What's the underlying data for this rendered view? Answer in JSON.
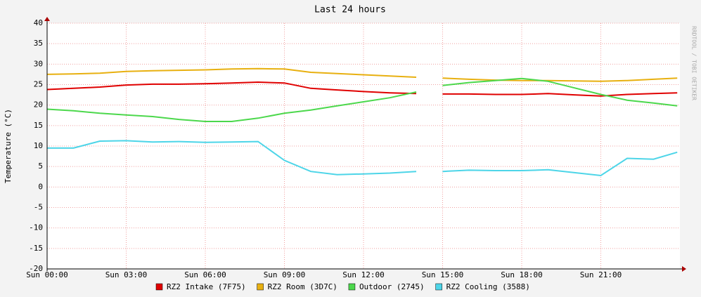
{
  "chart_data": {
    "type": "line",
    "title": "Last 24 hours",
    "y_label": "Temperature (°C)",
    "watermark": "RRDTOOL / TOBI OETIKER",
    "x": [
      0,
      1,
      2,
      3,
      4,
      5,
      6,
      7,
      8,
      9,
      10,
      11,
      12,
      13,
      14,
      14.5,
      15,
      16,
      17,
      18,
      19,
      20,
      21,
      22,
      23,
      23.9
    ],
    "series": [
      {
        "name": "RZ2 Intake (7F75)",
        "color": "#e00000",
        "values": [
          23.8,
          24.1,
          24.4,
          24.9,
          25.1,
          25.1,
          25.2,
          25.4,
          25.6,
          25.4,
          24.1,
          23.7,
          23.3,
          23.0,
          22.8,
          null,
          22.7,
          22.7,
          22.6,
          22.6,
          22.8,
          22.5,
          22.2,
          22.6,
          22.8,
          23.0
        ]
      },
      {
        "name": "RZ2 Room (3D7C)",
        "color": "#e8b010",
        "values": [
          27.5,
          27.6,
          27.8,
          28.2,
          28.4,
          28.5,
          28.6,
          28.8,
          28.9,
          28.8,
          28.0,
          27.7,
          27.4,
          27.1,
          26.8,
          null,
          26.6,
          26.3,
          26.1,
          26.0,
          26.0,
          25.9,
          25.8,
          26.0,
          26.3,
          26.6
        ]
      },
      {
        "name": "Outdoor (2745)",
        "color": "#4cd84c",
        "values": [
          19.0,
          18.6,
          18.0,
          17.6,
          17.2,
          16.5,
          16.0,
          16.0,
          16.8,
          18.0,
          18.8,
          19.8,
          20.8,
          21.8,
          23.2,
          null,
          24.8,
          25.5,
          26.0,
          26.5,
          25.8,
          24.2,
          22.6,
          21.2,
          20.5,
          19.8
        ]
      },
      {
        "name": "RZ2 Cooling (3588)",
        "color": "#4dd5e8",
        "values": [
          9.5,
          9.5,
          11.2,
          11.3,
          11.0,
          11.1,
          10.9,
          11.0,
          11.1,
          6.5,
          3.8,
          3.0,
          3.2,
          3.4,
          3.8,
          null,
          3.8,
          4.1,
          4.0,
          4.0,
          4.2,
          3.5,
          2.8,
          7.0,
          6.8,
          8.5
        ]
      }
    ],
    "xlim": [
      0,
      24
    ],
    "xticks": [
      {
        "value": 0,
        "label": "Sun 00:00"
      },
      {
        "value": 3,
        "label": "Sun 03:00"
      },
      {
        "value": 6,
        "label": "Sun 06:00"
      },
      {
        "value": 9,
        "label": "Sun 09:00"
      },
      {
        "value": 12,
        "label": "Sun 12:00"
      },
      {
        "value": 15,
        "label": "Sun 15:00"
      },
      {
        "value": 18,
        "label": "Sun 18:00"
      },
      {
        "value": 21,
        "label": "Sun 21:00"
      }
    ],
    "ylim": [
      -20,
      40
    ],
    "yticks": [
      -20,
      -15,
      -10,
      -5,
      0,
      5,
      10,
      15,
      20,
      25,
      30,
      35,
      40
    ],
    "grid": true
  }
}
